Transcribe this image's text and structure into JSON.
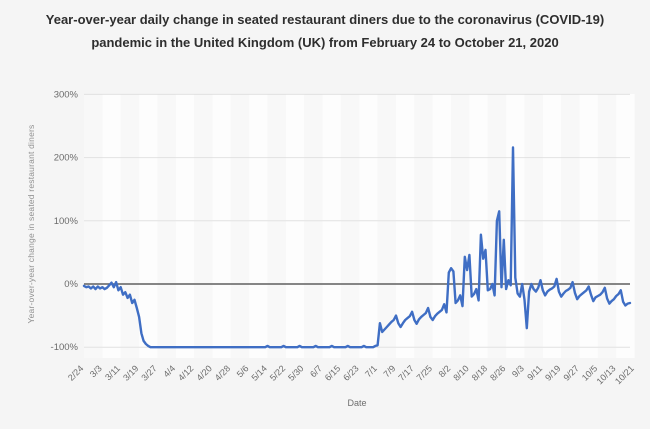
{
  "chart_data": {
    "type": "line",
    "title": "Year-over-year daily change in seated restaurant diners due to the coronavirus (COVID-19) pandemic in the United Kingdom (UK) from February 24 to October 21, 2020",
    "xlabel": "Date",
    "ylabel": "Year-over-year change in seated restaurant diners",
    "x_unit": "daily values, first point 2/24, last point 10/21",
    "x_tick_labels": [
      "2/24",
      "3/3",
      "3/11",
      "3/19",
      "3/27",
      "4/4",
      "4/12",
      "4/20",
      "4/28",
      "5/6",
      "5/14",
      "5/22",
      "5/30",
      "6/7",
      "6/15",
      "6/23",
      "7/1",
      "7/9",
      "7/17",
      "7/25",
      "8/2",
      "8/10",
      "8/18",
      "8/26",
      "9/3",
      "9/11",
      "9/19",
      "9/27",
      "10/5",
      "10/13",
      "10/21"
    ],
    "x_tick_day_offsets": [
      0,
      8,
      16,
      24,
      32,
      40,
      48,
      56,
      64,
      72,
      80,
      88,
      96,
      104,
      112,
      120,
      128,
      136,
      144,
      152,
      160,
      168,
      176,
      184,
      192,
      200,
      208,
      216,
      224,
      232,
      240
    ],
    "y_tick_labels": [
      "300%",
      "200%",
      "100%",
      "0%",
      "-100%"
    ],
    "y_tick_values": [
      300,
      200,
      100,
      0,
      -100
    ],
    "ylim": [
      -120,
      300
    ],
    "grid": "horizontal",
    "legend": "none",
    "line_color": "#3f6ec4",
    "zero_line_color": "#5f5f5f",
    "grid_color": "#e2e2e2",
    "series": [
      {
        "name": "YoY change in seated restaurant diners (%)",
        "values": [
          -3,
          -5,
          -4,
          -7,
          -4,
          -8,
          -4,
          -7,
          -5,
          -8,
          -6,
          -2,
          2,
          -5,
          3,
          -10,
          -5,
          -17,
          -13,
          -22,
          -17,
          -30,
          -25,
          -38,
          -52,
          -78,
          -90,
          -95,
          -98,
          -100,
          -100,
          -100,
          -100,
          -100,
          -100,
          -100,
          -100,
          -100,
          -100,
          -100,
          -100,
          -100,
          -100,
          -100,
          -100,
          -100,
          -100,
          -100,
          -100,
          -100,
          -100,
          -100,
          -100,
          -100,
          -100,
          -100,
          -100,
          -100,
          -100,
          -100,
          -100,
          -100,
          -100,
          -100,
          -100,
          -100,
          -100,
          -100,
          -100,
          -100,
          -100,
          -100,
          -100,
          -100,
          -100,
          -100,
          -100,
          -100,
          -100,
          -100,
          -98,
          -100,
          -100,
          -100,
          -100,
          -100,
          -100,
          -98,
          -100,
          -100,
          -100,
          -100,
          -100,
          -100,
          -98,
          -100,
          -100,
          -100,
          -100,
          -100,
          -100,
          -98,
          -100,
          -100,
          -100,
          -100,
          -100,
          -100,
          -98,
          -100,
          -100,
          -100,
          -100,
          -100,
          -100,
          -98,
          -100,
          -100,
          -100,
          -100,
          -100,
          -100,
          -98,
          -100,
          -100,
          -100,
          -100,
          -98,
          -97,
          -62,
          -76,
          -72,
          -68,
          -64,
          -60,
          -57,
          -50,
          -62,
          -68,
          -62,
          -57,
          -54,
          -51,
          -44,
          -57,
          -63,
          -56,
          -52,
          -49,
          -46,
          -38,
          -52,
          -57,
          -51,
          -47,
          -44,
          -41,
          -32,
          -45,
          18,
          25,
          20,
          -30,
          -26,
          -18,
          -35,
          43,
          22,
          46,
          -20,
          -16,
          -8,
          -26,
          78,
          40,
          54,
          -10,
          -8,
          0,
          -18,
          100,
          115,
          -5,
          70,
          -8,
          6,
          -2,
          216,
          10,
          -15,
          -20,
          0,
          -25,
          -70,
          -12,
          0,
          -8,
          -12,
          -6,
          6,
          -10,
          -18,
          -12,
          -9,
          -7,
          -4,
          8,
          -12,
          -20,
          -15,
          -11,
          -9,
          -6,
          3,
          -14,
          -24,
          -19,
          -16,
          -13,
          -10,
          -4,
          -17,
          -27,
          -21,
          -19,
          -17,
          -13,
          -6,
          -23,
          -31,
          -27,
          -24,
          -19,
          -16,
          -10,
          -28,
          -34,
          -31,
          -30
        ]
      }
    ]
  }
}
